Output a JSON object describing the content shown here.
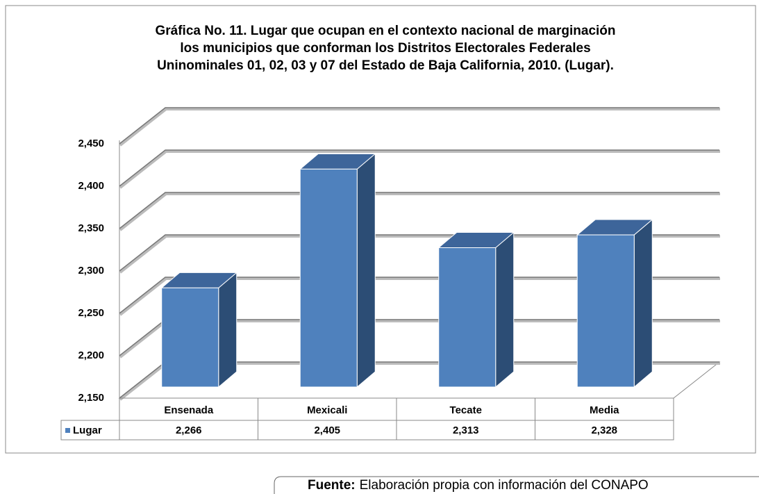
{
  "chart_data": {
    "type": "bar3d",
    "title": [
      "Gráfica No. 11. Lugar que ocupan en el contexto nacional de marginación",
      "los municipios que conforman los Distritos Electorales Federales",
      "Uninominales 01, 02, 03 y 07 del Estado de Baja California, 2010.  (Lugar)."
    ],
    "categories": [
      "Ensenada",
      "Mexicali",
      "Tecate",
      "Media"
    ],
    "series": [
      {
        "name": "Lugar",
        "color": "#4f81bd",
        "values": [
          2266,
          2405,
          2313,
          2328
        ],
        "value_labels": [
          "2,266",
          "2,405",
          "2,313",
          "2,328"
        ]
      }
    ],
    "ylim": [
      2150,
      2450
    ],
    "yticks": [
      {
        "value": 2150,
        "label": "2,150"
      },
      {
        "value": 2200,
        "label": "2,200"
      },
      {
        "value": 2250,
        "label": "2,250"
      },
      {
        "value": 2300,
        "label": "2,300"
      },
      {
        "value": 2350,
        "label": "2,350"
      },
      {
        "value": 2400,
        "label": "2,400"
      },
      {
        "value": 2450,
        "label": "2,450"
      }
    ],
    "grid": true
  },
  "source": {
    "label": "Fuente:",
    "text": "Elaboración propia con información del CONAPO"
  }
}
